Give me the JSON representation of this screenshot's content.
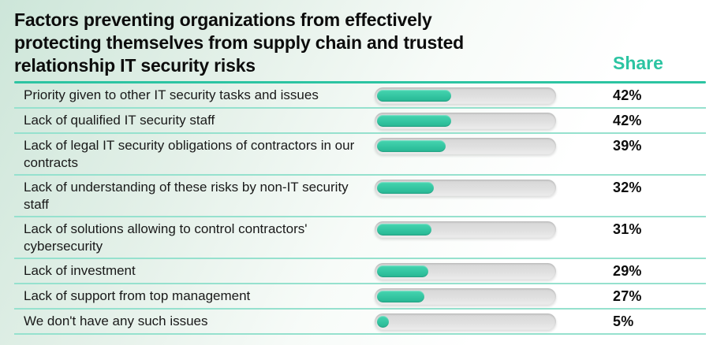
{
  "header": {
    "title_lines": [
      "Factors preventing organizations from effectively",
      "protecting themselves from supply chain and trusted",
      "relationship IT security risks"
    ],
    "share_label": "Share"
  },
  "colors": {
    "accent_teal": "#2cc4a2",
    "separator_teal": "#96e1ce",
    "bar_fill": "#33c7a2",
    "bar_track": "#dedede",
    "title_text": "#0c0c0c",
    "background_mint": "#cde6d9"
  },
  "chart_data": {
    "type": "bar",
    "title": "Factors preventing organizations from effectively protecting themselves from supply chain and trusted relationship IT security risks",
    "xlabel": "",
    "ylabel": "Share",
    "xlim": [
      0,
      100
    ],
    "grid": false,
    "legend_position": "none",
    "orientation": "horizontal",
    "categories": [
      "Priority given to other IT security tasks and issues",
      "Lack of qualified IT security staff",
      "Lack of legal IT security obligations of contractors in our contracts",
      "Lack of understanding of these risks by non-IT security staff",
      "Lack of solutions allowing to control contractors' cybersecurity",
      "Lack of investment",
      "Lack of support from top management",
      "We don't have any such issues"
    ],
    "values": [
      42,
      42,
      39,
      32,
      31,
      29,
      27,
      5
    ],
    "shares": [
      "42%",
      "42%",
      "39%",
      "32%",
      "31%",
      "29%",
      "27%",
      "5%"
    ]
  }
}
